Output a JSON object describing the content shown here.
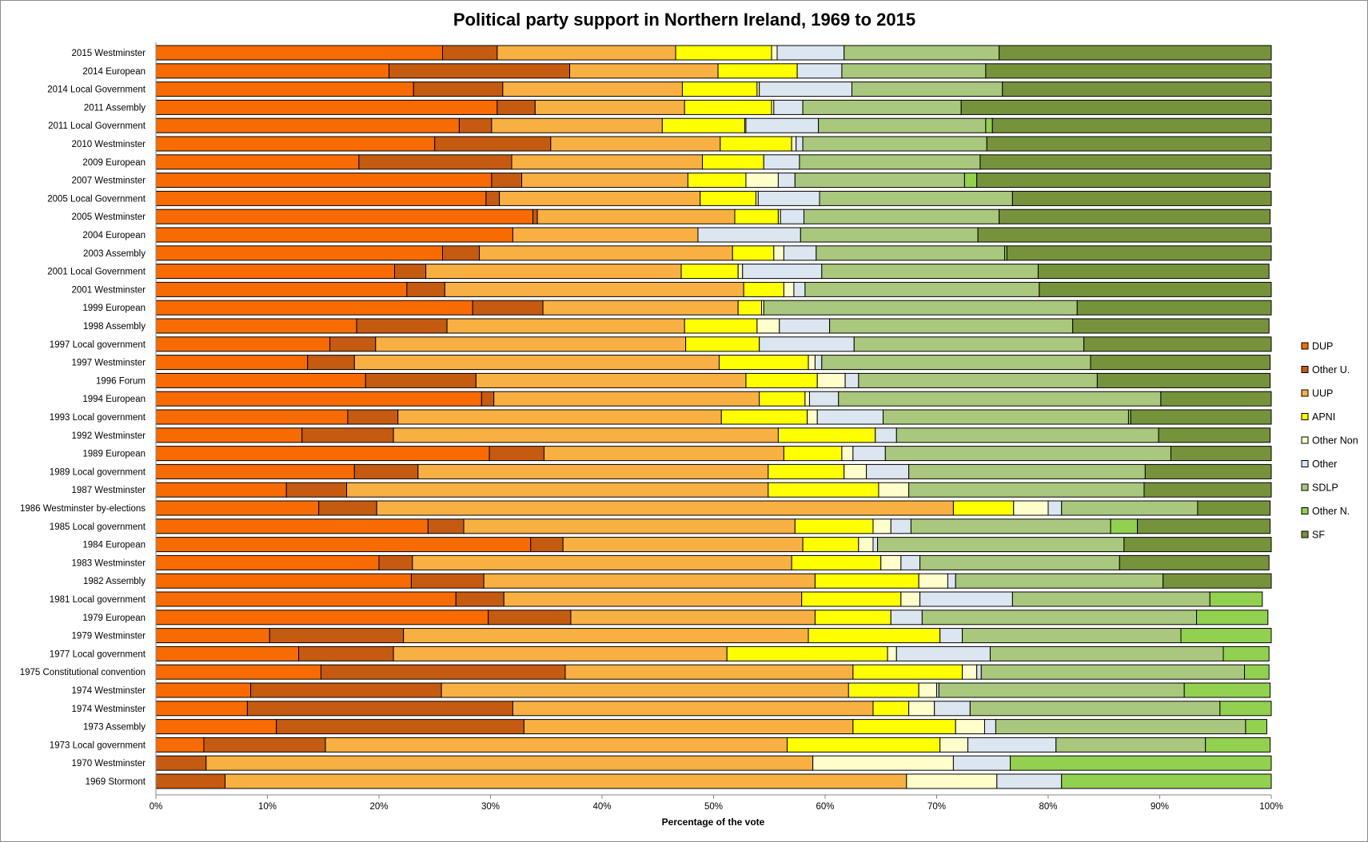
{
  "chart_data": {
    "type": "bar",
    "orientation": "horizontal",
    "stacked": "percent",
    "title": "Political party support in Northern Ireland, 1969 to 2015",
    "xlabel": "Percentage of the vote",
    "ylabel": "",
    "xlim": [
      0,
      100
    ],
    "x_ticks": [
      "0%",
      "10%",
      "20%",
      "30%",
      "40%",
      "50%",
      "60%",
      "70%",
      "80%",
      "90%",
      "100%"
    ],
    "legend_position": "right",
    "grid": false,
    "categories": [
      "2015 Westminster",
      "2014 European",
      "2014 Local Government",
      "2011 Assembly",
      "2011 Local Government",
      "2010 Westminster",
      "2009 European",
      "2007 Westminster",
      "2005 Local Government",
      "2005 Westminster",
      "2004 European",
      "2003 Assembly",
      "2001 Local Government",
      "2001 Westminster",
      "1999 European",
      "1998 Assembly",
      "1997 Local government",
      "1997 Westminster",
      "1996 Forum",
      "1994 European",
      "1993 Local government",
      "1992 Westminster",
      "1989 European",
      "1989 Local government",
      "1987 Westminster",
      "1986 Westminster by-elections",
      "1985 Local government",
      "1984 European",
      "1983 Westminster",
      "1982 Assembly",
      "1981 Local government",
      "1979 European",
      "1979 Westminster",
      "1977 Local government",
      "1975 Constitutional convention",
      "1974 Westminster",
      "1974 Westminster",
      "1973 Assembly",
      "1973 Local government",
      "1970 Westminster",
      "1969 Stormont"
    ],
    "series": [
      {
        "name": "DUP",
        "color": "#f76b02",
        "values": [
          25.7,
          20.9,
          23.1,
          30.6,
          27.2,
          25.0,
          18.2,
          30.1,
          29.6,
          33.8,
          32.0,
          25.7,
          21.4,
          22.5,
          28.4,
          18.0,
          15.6,
          13.6,
          18.8,
          29.2,
          17.2,
          13.1,
          29.9,
          17.8,
          11.7,
          14.6,
          24.4,
          33.6,
          20.0,
          22.9,
          26.9,
          29.8,
          10.2,
          12.8,
          14.8,
          8.5,
          8.2,
          10.8,
          4.3,
          0,
          0
        ]
      },
      {
        "name": "Other U.",
        "color": "#c55a11",
        "values": [
          4.9,
          16.2,
          8.0,
          3.4,
          2.9,
          10.4,
          13.7,
          2.7,
          1.2,
          0.4,
          0,
          3.3,
          2.8,
          3.4,
          6.3,
          8.1,
          4.1,
          4.2,
          9.9,
          1.1,
          4.5,
          8.2,
          4.9,
          5.7,
          5.4,
          5.2,
          3.2,
          2.9,
          3.0,
          6.5,
          4.3,
          7.4,
          12.0,
          8.5,
          21.9,
          17.1,
          23.8,
          22.2,
          10.9,
          4.5,
          6.2
        ]
      },
      {
        "name": "UUP",
        "color": "#f9b042",
        "values": [
          16.0,
          13.3,
          16.1,
          13.4,
          15.3,
          15.2,
          17.1,
          14.9,
          18.0,
          17.7,
          16.6,
          22.7,
          22.9,
          26.8,
          17.5,
          21.3,
          27.8,
          32.7,
          24.2,
          23.8,
          29.0,
          34.5,
          21.5,
          31.4,
          37.8,
          51.7,
          29.7,
          21.5,
          34.0,
          29.7,
          26.7,
          21.9,
          36.3,
          29.9,
          25.8,
          36.5,
          32.3,
          29.5,
          41.4,
          54.4,
          61.1
        ]
      },
      {
        "name": "APNI",
        "color": "#ffff00",
        "values": [
          8.6,
          7.1,
          6.7,
          7.8,
          7.4,
          6.4,
          5.5,
          5.2,
          5.0,
          3.9,
          0,
          3.7,
          5.1,
          3.6,
          2.1,
          6.5,
          6.6,
          8.0,
          6.4,
          4.1,
          7.7,
          8.7,
          5.2,
          6.8,
          9.9,
          5.4,
          7.0,
          5.0,
          8.0,
          9.3,
          8.9,
          6.8,
          11.8,
          14.4,
          9.8,
          6.3,
          3.2,
          9.2,
          13.7,
          0,
          0
        ]
      },
      {
        "name": "Other Non",
        "color": "#ffffcc",
        "values": [
          0.5,
          0,
          0.2,
          0.2,
          0.1,
          0.4,
          0,
          2.9,
          0.2,
          0.2,
          0,
          0.9,
          0.4,
          0.9,
          0.2,
          2.0,
          0,
          0.6,
          2.5,
          0.4,
          0.9,
          0,
          1.0,
          2.0,
          2.7,
          3.1,
          1.6,
          1.3,
          1.8,
          2.6,
          1.7,
          0,
          0,
          0.8,
          1.3,
          1.6,
          2.3,
          2.6,
          2.5,
          12.6,
          8.1
        ]
      },
      {
        "name": "Other",
        "color": "#dce6f1",
        "values": [
          6.0,
          4.0,
          8.3,
          2.6,
          6.5,
          0.6,
          3.2,
          1.5,
          5.5,
          2.1,
          9.2,
          2.9,
          7.1,
          1.0,
          0,
          4.5,
          8.5,
          0.6,
          1.2,
          2.6,
          5.9,
          1.9,
          2.9,
          3.8,
          0,
          1.2,
          1.8,
          0.4,
          1.7,
          0.7,
          8.3,
          2.8,
          2.0,
          8.4,
          0.4,
          0.2,
          3.2,
          1.0,
          7.9,
          5.1,
          5.8
        ]
      },
      {
        "name": "SDLP",
        "color": "#a9c77d",
        "values": [
          13.9,
          12.9,
          13.5,
          14.2,
          15.0,
          16.5,
          16.2,
          15.2,
          17.3,
          17.5,
          15.9,
          16.9,
          19.4,
          21.0,
          28.1,
          21.8,
          20.6,
          24.1,
          21.4,
          28.9,
          22.0,
          23.5,
          25.6,
          21.2,
          21.1,
          12.2,
          17.9,
          22.1,
          17.9,
          18.6,
          17.7,
          24.6,
          19.6,
          20.9,
          23.6,
          22.0,
          22.4,
          22.4,
          13.4,
          0,
          0
        ]
      },
      {
        "name": "Other N.",
        "color": "#92d050",
        "values": [
          0,
          0,
          0,
          0,
          0.6,
          0,
          0,
          1.1,
          0,
          0,
          0,
          0.2,
          0,
          0,
          0,
          0,
          0,
          0,
          0,
          0,
          0.2,
          0,
          0,
          0,
          0,
          0,
          2.4,
          0,
          0,
          0,
          4.7,
          6.4,
          8.1,
          4.1,
          2.2,
          7.7,
          4.6,
          1.9,
          5.8,
          23.4,
          18.8
        ]
      },
      {
        "name": "SF",
        "color": "#76933c",
        "values": [
          24.5,
          25.6,
          24.1,
          27.8,
          25.0,
          25.5,
          26.1,
          26.3,
          23.4,
          24.3,
          26.3,
          23.7,
          20.7,
          21.7,
          17.4,
          17.6,
          16.9,
          16.1,
          15.5,
          9.9,
          12.6,
          10.0,
          9.1,
          11.3,
          11.4,
          6.5,
          11.9,
          13.3,
          13.4,
          10.1,
          0,
          0,
          0,
          0,
          0,
          0,
          0,
          0,
          0,
          0,
          0
        ]
      }
    ]
  }
}
